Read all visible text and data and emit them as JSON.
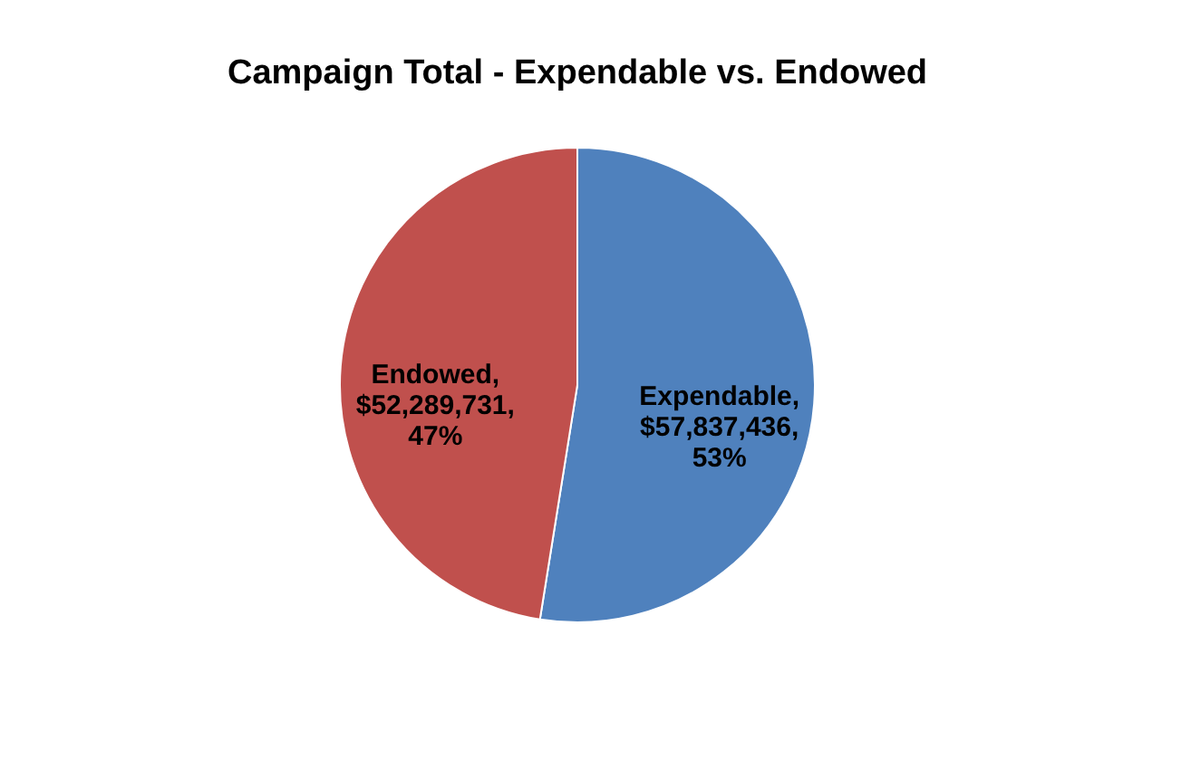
{
  "chart_data": {
    "type": "pie",
    "title": "Campaign Total  - Expendable vs. Endowed",
    "categories": [
      "Expendable",
      "Endowed"
    ],
    "values": [
      57837436,
      52289731
    ],
    "colors": [
      "#4f81bd",
      "#c0504d"
    ],
    "value_labels": [
      ", $57,837,436, 53%",
      ", $52,289,731, 47%"
    ],
    "legend": false
  }
}
